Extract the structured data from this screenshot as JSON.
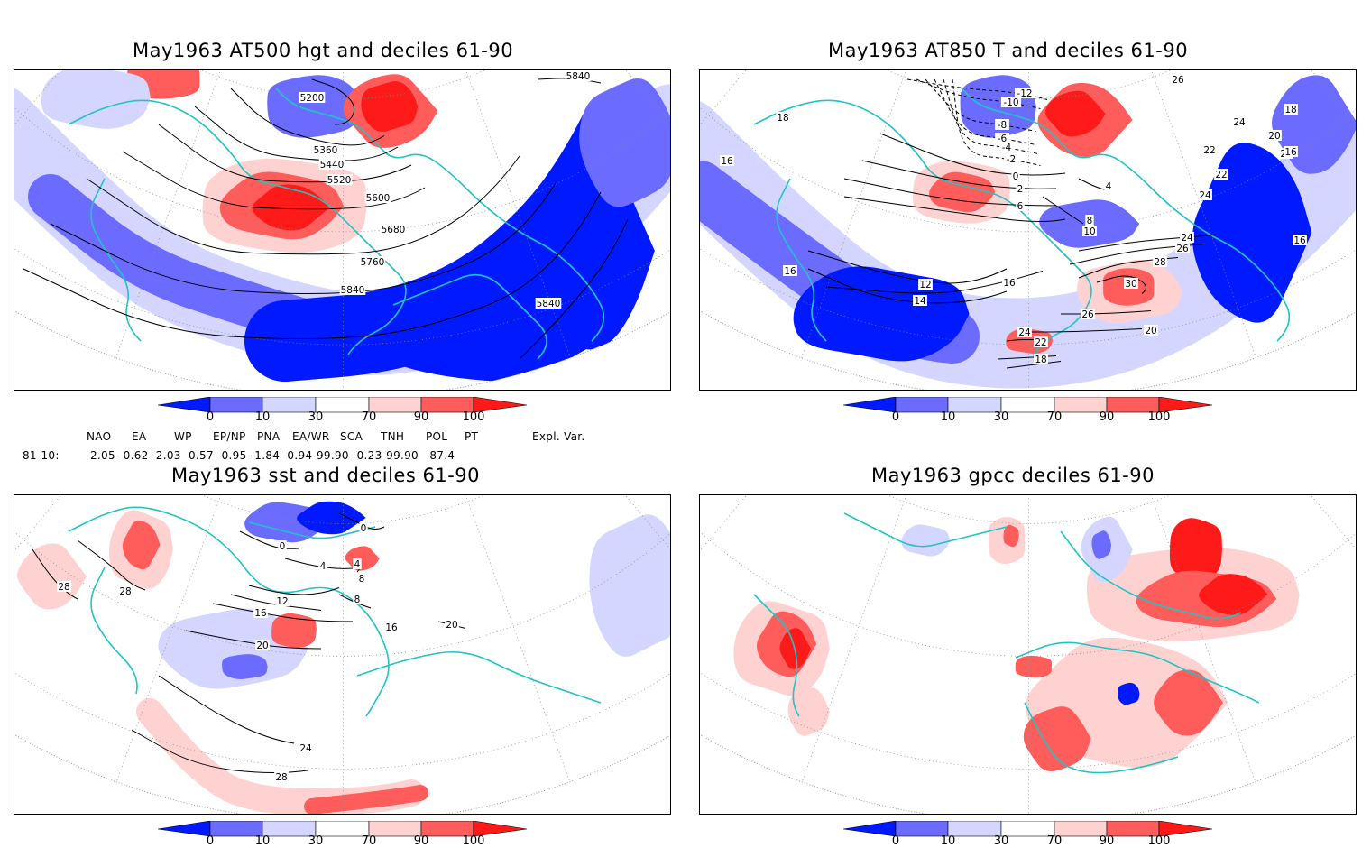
{
  "colors": {
    "deep_blue": "#0019ff",
    "mid_blue": "#6b6cff",
    "light_blue": "#d4d6ff",
    "light_red": "#ffd2d2",
    "mid_red": "#ff5c5c",
    "deep_red": "#ff1a1a",
    "coast": "#20c4c4"
  },
  "panels": [
    {
      "title": "May1963 AT500 hgt and deciles 61-90",
      "contour_labels": [
        "5200",
        "5360",
        "5440",
        "5520",
        "5600",
        "5680",
        "5760",
        "5840",
        "5840",
        "5840"
      ]
    },
    {
      "title": "May1963 AT850 T and deciles 61-90",
      "contour_labels": [
        "-12",
        "-10",
        "-8",
        "-6",
        "-4",
        "-2",
        "0",
        "2",
        "4",
        "6",
        "8",
        "10",
        "12",
        "14",
        "16",
        "16",
        "16",
        "16",
        "18",
        "18",
        "18",
        "20",
        "20",
        "20",
        "22",
        "22",
        "22",
        "24",
        "24",
        "24",
        "26",
        "26",
        "26",
        "28",
        "30"
      ]
    },
    {
      "title": "May1963 sst and deciles 61-90",
      "contour_labels": [
        "0",
        "0",
        "4",
        "4",
        "8",
        "8",
        "12",
        "16",
        "16",
        "20",
        "20",
        "24",
        "28",
        "28",
        "28"
      ]
    },
    {
      "title": "May1963 gpcc deciles 61-90",
      "contour_labels": []
    }
  ],
  "colorbar_labels": [
    "0",
    "10",
    "30",
    "70",
    "90",
    "100"
  ],
  "indices": {
    "headers": [
      "NAO",
      "EA",
      "WP",
      "EP/NP",
      "PNA",
      "EA/WR",
      "SCA",
      "TNH",
      "POL",
      "PT",
      "Expl. Var."
    ],
    "row_label": "81-10:",
    "values": "2.05 -0.62  2.03  0.57 -0.95 -1.84  0.94-99.90 -0.23-99.90   87.4"
  }
}
